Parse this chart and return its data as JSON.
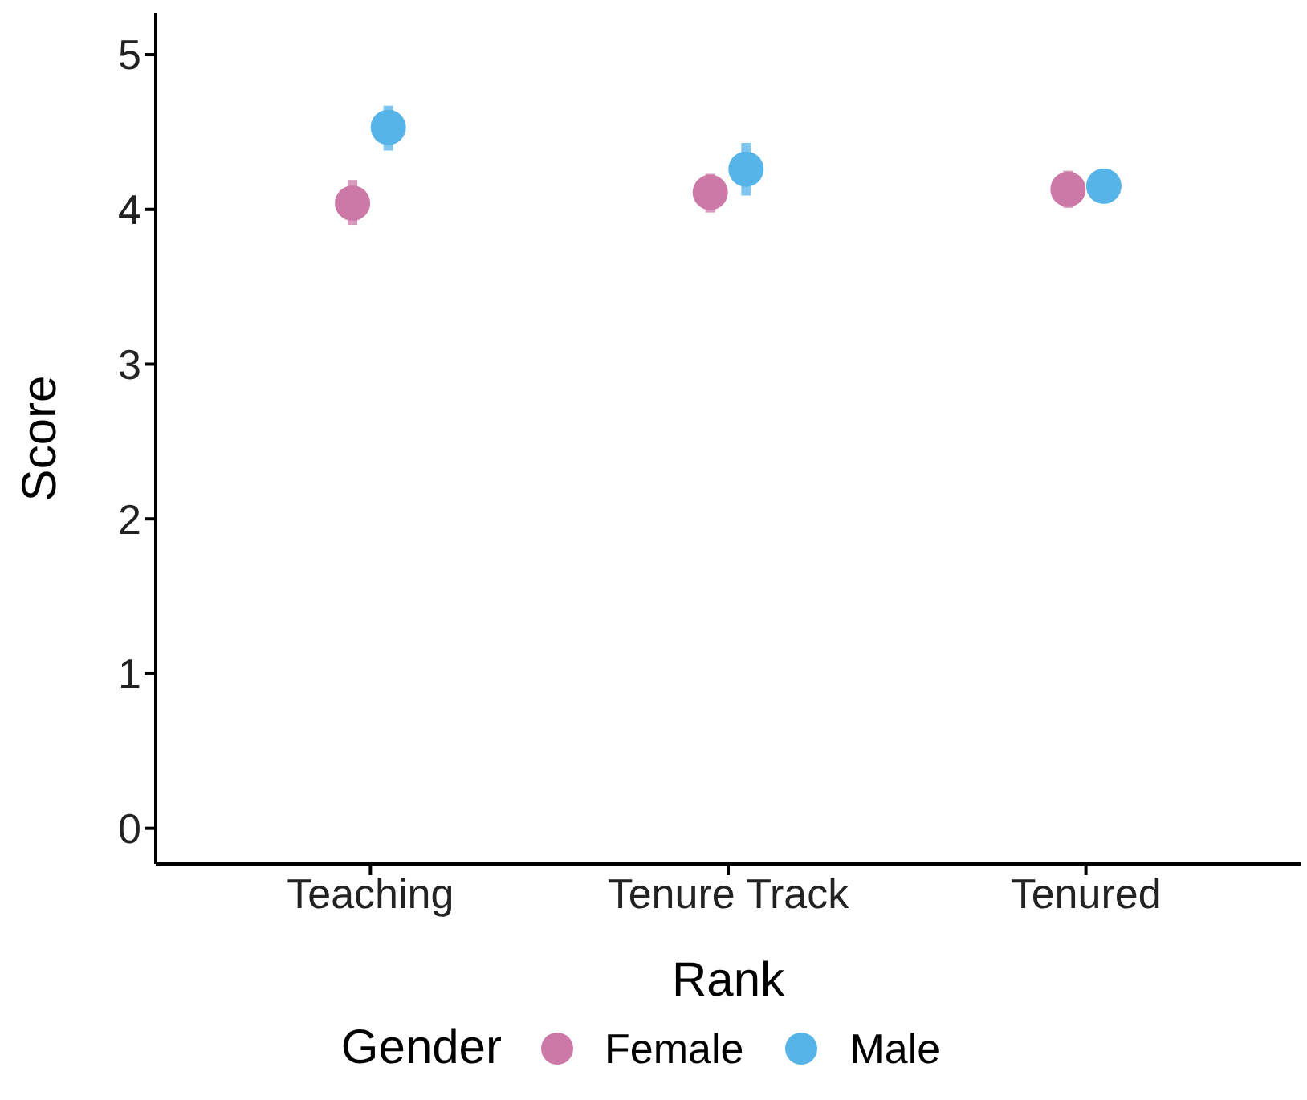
{
  "chart_data": {
    "type": "scatter",
    "xlabel": "Rank",
    "ylabel": "Score",
    "legend_title": "Gender",
    "categories": [
      "Teaching",
      "Tenure Track",
      "Tenured"
    ],
    "series": [
      {
        "name": "Female",
        "color": "#cc79a7",
        "values": [
          4.04,
          4.11,
          4.13
        ],
        "errors": [
          [
            3.9,
            4.19
          ],
          [
            3.98,
            4.23
          ],
          [
            4.01,
            4.25
          ]
        ]
      },
      {
        "name": "Male",
        "color": "#56b4e9",
        "values": [
          4.53,
          4.26,
          4.15
        ],
        "errors": [
          [
            4.38,
            4.67
          ],
          [
            4.09,
            4.43
          ],
          null
        ]
      }
    ],
    "ylim": [
      -0.23,
      5.27
    ],
    "yticks": [
      0,
      1,
      2,
      3,
      4,
      5
    ],
    "grid": false,
    "legend": "bottom",
    "marker": "circle"
  }
}
